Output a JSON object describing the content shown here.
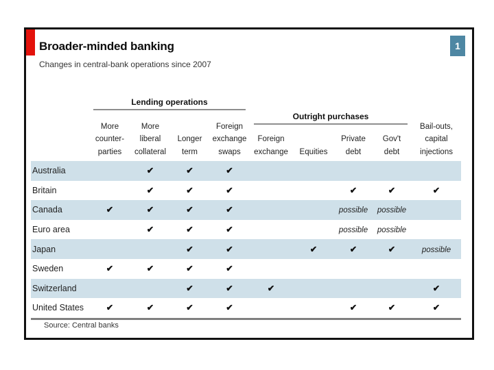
{
  "page": {
    "badge": "1"
  },
  "header": {
    "title": "Broader-minded banking",
    "subtitle": "Changes in central-bank operations since 2007"
  },
  "footer": {
    "source": "Source: Central banks"
  },
  "colors": {
    "accent_red": "#e3120b",
    "badge_blue": "#4e87a3",
    "stripe_blue": "#cfe0e9",
    "rule_gray": "#8e8e8e"
  },
  "chart_data": {
    "type": "table",
    "title": "Broader-minded banking",
    "subtitle": "Changes in central-bank operations since 2007",
    "source": "Source: Central banks",
    "column_groups": [
      {
        "label": "Lending operations",
        "spans_columns": [
          0,
          3
        ]
      },
      {
        "label": "Outright purchases",
        "spans_columns": [
          4,
          7
        ]
      }
    ],
    "columns": [
      {
        "lines": [
          "More",
          "counter-",
          "parties"
        ]
      },
      {
        "lines": [
          "More",
          "liberal",
          "collateral"
        ]
      },
      {
        "lines": [
          "Longer",
          "term"
        ]
      },
      {
        "lines": [
          "Foreign",
          "exchange",
          "swaps"
        ]
      },
      {
        "lines": [
          "Foreign",
          "exchange"
        ]
      },
      {
        "lines": [
          "Equities"
        ]
      },
      {
        "lines": [
          "Private",
          "debt"
        ]
      },
      {
        "lines": [
          "Gov't",
          "debt"
        ]
      },
      {
        "lines": [
          "Bail-outs,",
          "capital",
          "injections"
        ]
      }
    ],
    "check_glyph": "✔",
    "possible_label": "possible",
    "rows": [
      {
        "country": "Australia",
        "cells": [
          "",
          "check",
          "check",
          "check",
          "",
          "",
          "",
          "",
          ""
        ]
      },
      {
        "country": "Britain",
        "cells": [
          "",
          "check",
          "check",
          "check",
          "",
          "",
          "check",
          "check",
          "check"
        ]
      },
      {
        "country": "Canada",
        "cells": [
          "check",
          "check",
          "check",
          "check",
          "",
          "",
          "possible",
          "possible",
          ""
        ]
      },
      {
        "country": "Euro area",
        "cells": [
          "",
          "check",
          "check",
          "check",
          "",
          "",
          "possible",
          "possible",
          ""
        ]
      },
      {
        "country": "Japan",
        "cells": [
          "",
          "",
          "check",
          "check",
          "",
          "check",
          "check",
          "check",
          "possible"
        ]
      },
      {
        "country": "Sweden",
        "cells": [
          "check",
          "check",
          "check",
          "check",
          "",
          "",
          "",
          "",
          ""
        ]
      },
      {
        "country": "Switzerland",
        "cells": [
          "",
          "",
          "check",
          "check",
          "check",
          "",
          "",
          "",
          "check"
        ]
      },
      {
        "country": "United States",
        "cells": [
          "check",
          "check",
          "check",
          "check",
          "",
          "",
          "check",
          "check",
          "check"
        ]
      }
    ]
  }
}
